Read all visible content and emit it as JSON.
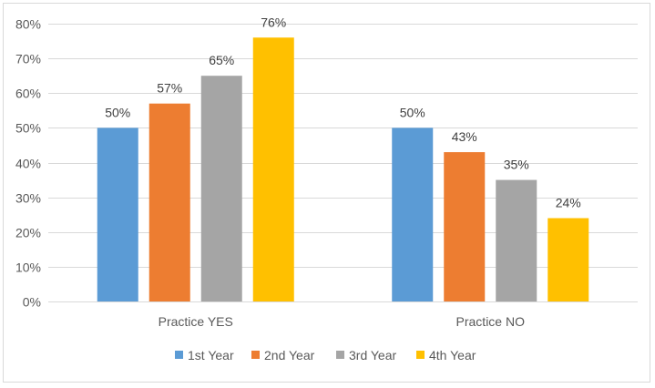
{
  "chart_data": {
    "type": "bar",
    "categories": [
      "Practice YES",
      "Practice NO"
    ],
    "series": [
      {
        "name": "1st Year",
        "values": [
          50,
          50
        ],
        "labels": [
          "50%",
          "50%"
        ],
        "color": "#5b9bd5"
      },
      {
        "name": "2nd Year",
        "values": [
          57,
          43
        ],
        "labels": [
          "57%",
          "43%"
        ],
        "color": "#ed7d31"
      },
      {
        "name": "3rd Year",
        "values": [
          65,
          35
        ],
        "labels": [
          "65%",
          "35%"
        ],
        "color": "#a5a5a5"
      },
      {
        "name": "4th Year",
        "values": [
          76,
          24
        ],
        "labels": [
          "76%",
          "24%"
        ],
        "color": "#ffc000"
      }
    ],
    "yticks": [
      "0%",
      "10%",
      "20%",
      "30%",
      "40%",
      "50%",
      "60%",
      "70%",
      "80%"
    ],
    "ylim": [
      0,
      80
    ],
    "grid": true,
    "legend_position": "bottom",
    "title": "",
    "xlabel": "",
    "ylabel": ""
  }
}
